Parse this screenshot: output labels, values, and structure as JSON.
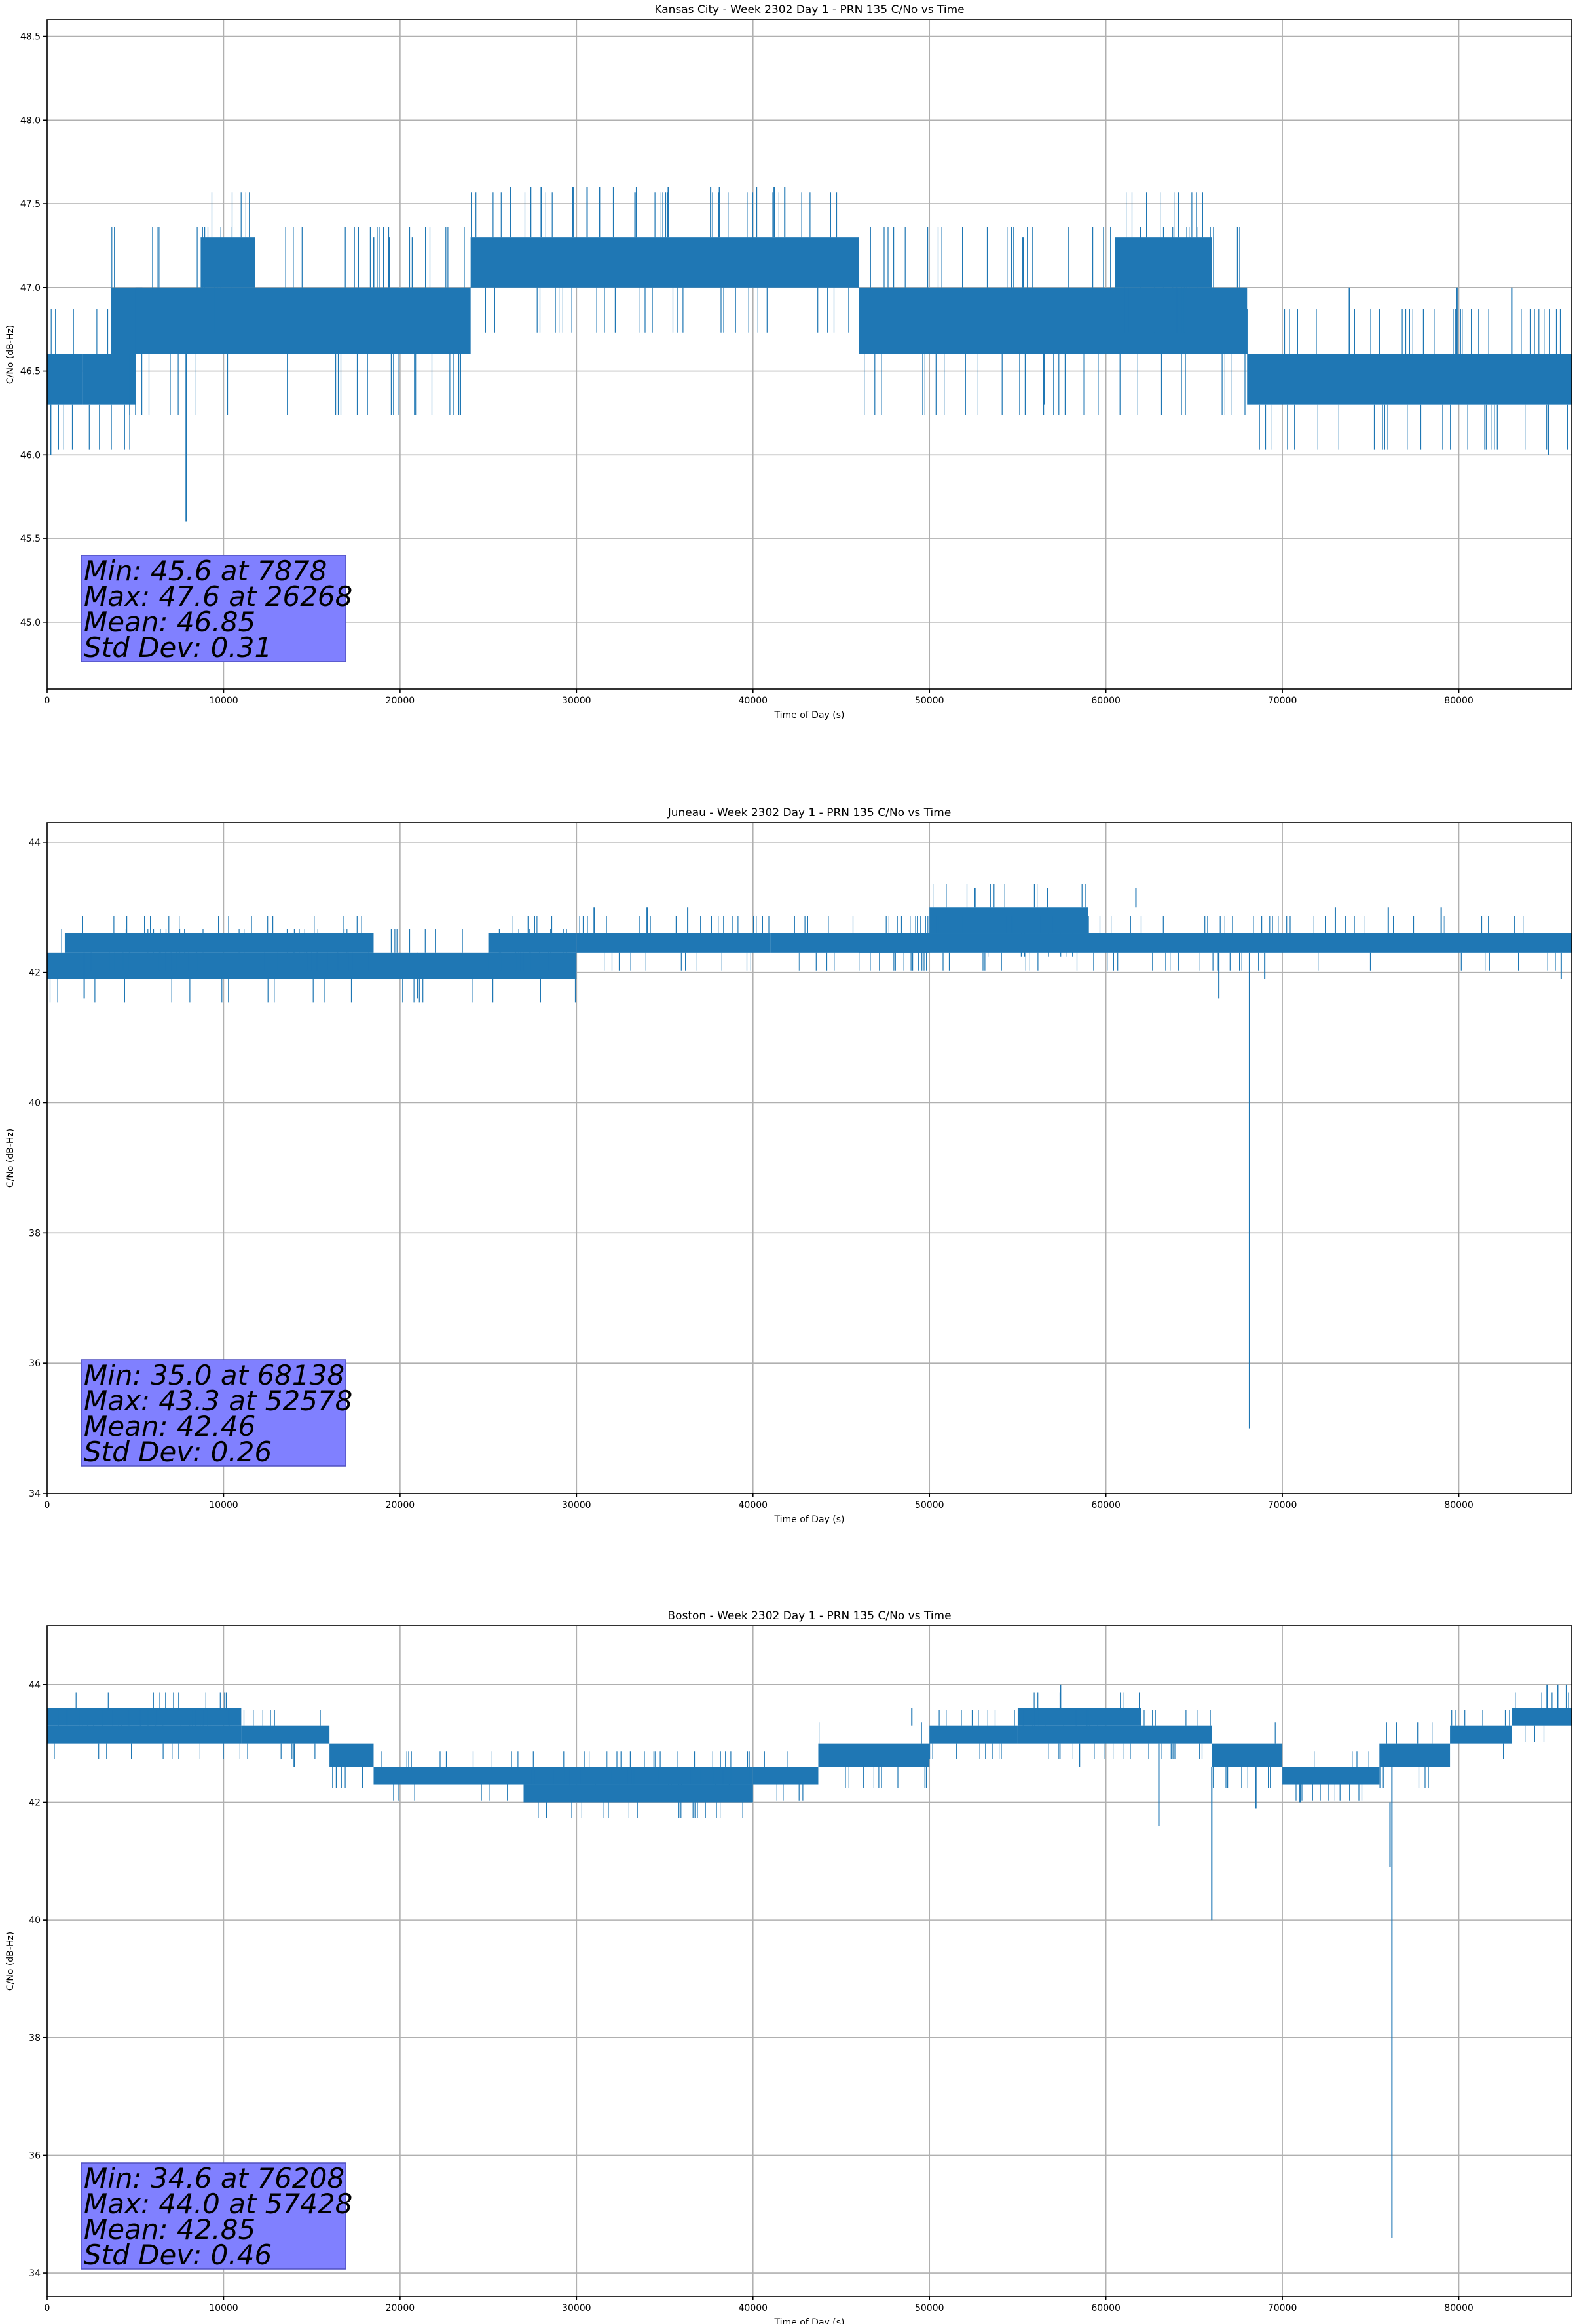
{
  "chart_data": [
    {
      "type": "line",
      "title": "Kansas City - Week 2302 Day 1 - PRN 135 C/No vs Time",
      "xlabel": "Time of Day (s)",
      "ylabel": "C/No (dB-Hz)",
      "xlim": [
        0,
        86400
      ],
      "ylim": [
        44.6,
        48.6
      ],
      "xticks": [
        0,
        10000,
        20000,
        30000,
        40000,
        50000,
        60000,
        70000,
        80000
      ],
      "yticks": [
        45.0,
        45.5,
        46.0,
        46.5,
        47.0,
        47.5,
        48.0,
        48.5
      ],
      "ytick_decimals": 1,
      "grid": true,
      "color": "#1f77b4",
      "bands": [
        {
          "x": [
            0,
            2000
          ],
          "lo": 46.3,
          "hi": 46.6
        },
        {
          "x": [
            2000,
            5000
          ],
          "lo": 46.3,
          "hi": 46.6
        },
        {
          "x": [
            3600,
            5400
          ],
          "lo": 46.6,
          "hi": 47.0
        },
        {
          "x": [
            5000,
            24000
          ],
          "lo": 46.6,
          "hi": 47.0
        },
        {
          "x": [
            8700,
            11800
          ],
          "lo": 47.0,
          "hi": 47.3
        },
        {
          "x": [
            24000,
            46000
          ],
          "lo": 47.0,
          "hi": 47.3
        },
        {
          "x": [
            46000,
            68000
          ],
          "lo": 46.6,
          "hi": 47.0
        },
        {
          "x": [
            60500,
            66000
          ],
          "lo": 47.0,
          "hi": 47.3
        },
        {
          "x": [
            68000,
            86400
          ],
          "lo": 46.3,
          "hi": 46.6
        }
      ],
      "spikes": [
        {
          "x": 200,
          "lo": 46.0,
          "hi": 46.3
        },
        {
          "x": 7878,
          "lo": 45.6,
          "hi": 46.6
        },
        {
          "x": 18500,
          "lo": 47.0,
          "hi": 47.3
        },
        {
          "x": 19400,
          "lo": 47.0,
          "hi": 47.3
        },
        {
          "x": 20700,
          "lo": 47.0,
          "hi": 47.3
        },
        {
          "x": 26268,
          "lo": 47.3,
          "hi": 47.6
        },
        {
          "x": 27400,
          "lo": 47.3,
          "hi": 47.6
        },
        {
          "x": 28000,
          "lo": 47.3,
          "hi": 47.6
        },
        {
          "x": 29800,
          "lo": 47.3,
          "hi": 47.6
        },
        {
          "x": 30600,
          "lo": 47.3,
          "hi": 47.6
        },
        {
          "x": 31300,
          "lo": 47.3,
          "hi": 47.6
        },
        {
          "x": 32100,
          "lo": 47.3,
          "hi": 47.6
        },
        {
          "x": 33400,
          "lo": 47.3,
          "hi": 47.6
        },
        {
          "x": 35200,
          "lo": 47.3,
          "hi": 47.6
        },
        {
          "x": 37600,
          "lo": 47.3,
          "hi": 47.6
        },
        {
          "x": 38100,
          "lo": 47.3,
          "hi": 47.6
        },
        {
          "x": 40200,
          "lo": 47.3,
          "hi": 47.6
        },
        {
          "x": 41200,
          "lo": 47.3,
          "hi": 47.6
        },
        {
          "x": 41800,
          "lo": 47.3,
          "hi": 47.6
        },
        {
          "x": 55300,
          "lo": 47.0,
          "hi": 47.3
        },
        {
          "x": 56500,
          "lo": 46.3,
          "hi": 46.6
        },
        {
          "x": 73800,
          "lo": 46.6,
          "hi": 47.0
        },
        {
          "x": 79900,
          "lo": 46.6,
          "hi": 47.0
        },
        {
          "x": 83000,
          "lo": 46.6,
          "hi": 47.0
        },
        {
          "x": 85100,
          "lo": 46.0,
          "hi": 46.3
        }
      ],
      "stats": [
        "Min: 45.6 at 7878",
        "Max: 47.6 at 26268",
        "Mean: 46.85",
        "Std Dev: 0.31"
      ]
    },
    {
      "type": "line",
      "title": "Juneau - Week 2302 Day 1 - PRN 135 C/No vs Time",
      "xlabel": "Time of Day (s)",
      "ylabel": "C/No (dB-Hz)",
      "xlim": [
        0,
        86400
      ],
      "ylim": [
        34.0,
        44.3
      ],
      "xticks": [
        0,
        10000,
        20000,
        30000,
        40000,
        50000,
        60000,
        70000,
        80000
      ],
      "yticks": [
        34,
        36,
        38,
        40,
        42,
        44
      ],
      "ytick_decimals": 0,
      "grid": true,
      "color": "#1f77b4",
      "bands": [
        {
          "x": [
            0,
            19000
          ],
          "lo": 41.9,
          "hi": 42.3
        },
        {
          "x": [
            19000,
            30000
          ],
          "lo": 41.9,
          "hi": 42.3
        },
        {
          "x": [
            1000,
            18500
          ],
          "lo": 42.3,
          "hi": 42.6
        },
        {
          "x": [
            25000,
            30000
          ],
          "lo": 42.3,
          "hi": 42.6
        },
        {
          "x": [
            30000,
            41000
          ],
          "lo": 42.3,
          "hi": 42.6
        },
        {
          "x": [
            41000,
            50000
          ],
          "lo": 42.3,
          "hi": 42.6
        },
        {
          "x": [
            50000,
            59000
          ],
          "lo": 42.6,
          "hi": 43.0
        },
        {
          "x": [
            59000,
            86400
          ],
          "lo": 42.3,
          "hi": 42.6
        },
        {
          "x": [
            46000,
            59000
          ],
          "lo": 42.3,
          "hi": 42.6
        }
      ],
      "spikes": [
        {
          "x": 2100,
          "lo": 41.6,
          "hi": 42.3
        },
        {
          "x": 21000,
          "lo": 41.6,
          "hi": 42.3
        },
        {
          "x": 31000,
          "lo": 42.6,
          "hi": 43.0
        },
        {
          "x": 34000,
          "lo": 42.6,
          "hi": 43.0
        },
        {
          "x": 36300,
          "lo": 42.6,
          "hi": 43.0
        },
        {
          "x": 52578,
          "lo": 43.0,
          "hi": 43.3
        },
        {
          "x": 56700,
          "lo": 43.0,
          "hi": 43.3
        },
        {
          "x": 61700,
          "lo": 43.0,
          "hi": 43.3
        },
        {
          "x": 66400,
          "lo": 41.6,
          "hi": 42.3
        },
        {
          "x": 68138,
          "lo": 35.0,
          "hi": 42.3
        },
        {
          "x": 69000,
          "lo": 41.9,
          "hi": 42.3
        },
        {
          "x": 73000,
          "lo": 42.6,
          "hi": 43.0
        },
        {
          "x": 76000,
          "lo": 42.6,
          "hi": 43.0
        },
        {
          "x": 79000,
          "lo": 42.6,
          "hi": 43.0
        },
        {
          "x": 85800,
          "lo": 41.9,
          "hi": 42.3
        }
      ],
      "stats": [
        "Min: 35.0 at 68138",
        "Max: 43.3 at 52578",
        "Mean: 42.46",
        "Std Dev: 0.26"
      ]
    },
    {
      "type": "line",
      "title": "Boston - Week 2302 Day 1 - PRN 135 C/No vs Time",
      "xlabel": "Time of Day (s)",
      "ylabel": "C/No (dB-Hz)",
      "xlim": [
        0,
        86400
      ],
      "ylim": [
        33.6,
        45.0
      ],
      "xticks": [
        0,
        10000,
        20000,
        30000,
        40000,
        50000,
        60000,
        70000,
        80000
      ],
      "yticks": [
        34,
        36,
        38,
        40,
        42,
        44
      ],
      "ytick_decimals": 0,
      "grid": true,
      "color": "#1f77b4",
      "bands": [
        {
          "x": [
            0,
            11000
          ],
          "lo": 43.3,
          "hi": 43.6
        },
        {
          "x": [
            0,
            11000
          ],
          "lo": 43.0,
          "hi": 43.3
        },
        {
          "x": [
            11000,
            16000
          ],
          "lo": 43.0,
          "hi": 43.3
        },
        {
          "x": [
            16000,
            18500
          ],
          "lo": 42.6,
          "hi": 43.0
        },
        {
          "x": [
            18500,
            27000
          ],
          "lo": 42.3,
          "hi": 42.6
        },
        {
          "x": [
            27000,
            40000
          ],
          "lo": 42.3,
          "hi": 42.6
        },
        {
          "x": [
            27000,
            40000
          ],
          "lo": 42.0,
          "hi": 42.3
        },
        {
          "x": [
            40000,
            43700
          ],
          "lo": 42.3,
          "hi": 42.6
        },
        {
          "x": [
            43700,
            50000
          ],
          "lo": 42.6,
          "hi": 43.0
        },
        {
          "x": [
            50000,
            55000
          ],
          "lo": 43.0,
          "hi": 43.3
        },
        {
          "x": [
            55000,
            62000
          ],
          "lo": 43.3,
          "hi": 43.6
        },
        {
          "x": [
            55000,
            66000
          ],
          "lo": 43.0,
          "hi": 43.3
        },
        {
          "x": [
            66000,
            70000
          ],
          "lo": 42.6,
          "hi": 43.0
        },
        {
          "x": [
            70000,
            75500
          ],
          "lo": 42.3,
          "hi": 42.6
        },
        {
          "x": [
            75500,
            79500
          ],
          "lo": 42.6,
          "hi": 43.0
        },
        {
          "x": [
            79500,
            83000
          ],
          "lo": 43.0,
          "hi": 43.3
        },
        {
          "x": [
            83000,
            86400
          ],
          "lo": 43.3,
          "hi": 43.6
        }
      ],
      "spikes": [
        {
          "x": 14000,
          "lo": 42.6,
          "hi": 43.0
        },
        {
          "x": 49000,
          "lo": 43.3,
          "hi": 43.6
        },
        {
          "x": 57428,
          "lo": 43.6,
          "hi": 44.0
        },
        {
          "x": 58500,
          "lo": 42.6,
          "hi": 43.0
        },
        {
          "x": 63000,
          "lo": 41.6,
          "hi": 43.0
        },
        {
          "x": 66000,
          "lo": 40.0,
          "hi": 42.6
        },
        {
          "x": 68500,
          "lo": 41.9,
          "hi": 42.6
        },
        {
          "x": 71000,
          "lo": 42.0,
          "hi": 42.3
        },
        {
          "x": 76208,
          "lo": 34.6,
          "hi": 42.6
        },
        {
          "x": 76100,
          "lo": 40.9,
          "hi": 42.0
        },
        {
          "x": 85000,
          "lo": 43.6,
          "hi": 44.0
        },
        {
          "x": 85600,
          "lo": 43.6,
          "hi": 44.0
        },
        {
          "x": 86100,
          "lo": 43.6,
          "hi": 44.0
        }
      ],
      "stats": [
        "Min: 34.6 at 76208",
        "Max: 44.0 at 57428",
        "Mean: 42.85",
        "Std Dev: 0.46"
      ]
    }
  ]
}
